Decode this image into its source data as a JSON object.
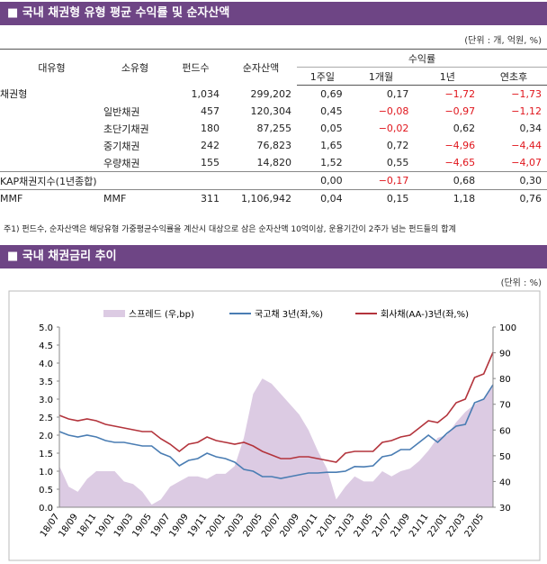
{
  "header": {
    "title": "■  국내 채권형 유형 평균 수익률 및 순자산액",
    "unit": "(단위 : 개, 억원, %)"
  },
  "table": {
    "columns": [
      "대유형",
      "소유형",
      "펀드수",
      "순자산액"
    ],
    "group": "수익률",
    "subcolumns": [
      "1주일",
      "1개월",
      "1년",
      "연초후"
    ],
    "rows": [
      [
        "채권형",
        null,
        "1,034",
        "299,202",
        "0,69",
        "0,17",
        "−1,72",
        "−1,73"
      ],
      [
        null,
        "일반채권",
        "457",
        "120,304",
        "0,45",
        "−0,08",
        "−0,97",
        "−1,12"
      ],
      [
        null,
        "초단기채권",
        "180",
        "87,255",
        "0,05",
        "−0,02",
        "0,62",
        "0,34"
      ],
      [
        null,
        "중기채권",
        "242",
        "76,823",
        "1,65",
        "0,72",
        "−4,96",
        "−4,44"
      ],
      [
        null,
        "우량채권",
        "155",
        "14,820",
        "1,52",
        "0,55",
        "−4,65",
        "−4,07"
      ],
      [
        "KAP채권지수(1년종합)",
        null,
        null,
        null,
        "0,00",
        "−0,17",
        "0,68",
        "0,30"
      ],
      [
        "MMF",
        "MMF",
        "311",
        "1,106,942",
        "0,04",
        "0,15",
        "1,18",
        "0,76"
      ]
    ]
  },
  "footnote": "주1) 펀드수, 순자산액은 해당유형 가중평균수익률을 계산시 대상으로 삼은 순자산액 10억이상, 운용기간이 2주가 넘는 펀드들의 합계",
  "section2": {
    "title": "■  국내 채권금리 추이",
    "unit": "(단위 : %)"
  },
  "chart_data": {
    "type": "line",
    "categories": [
      "18/07",
      null,
      "18/09",
      null,
      "18/11",
      null,
      "19/01",
      null,
      "19/03",
      null,
      "19/05",
      null,
      "19/07",
      null,
      "19/09",
      null,
      "19/11",
      null,
      "20/01",
      null,
      "20/03",
      null,
      "20/05",
      null,
      "20/07",
      null,
      "20/09",
      null,
      "20/11",
      null,
      "21/01",
      null,
      "21/03",
      null,
      "21/05",
      null,
      "21/07",
      null,
      "21/09",
      null,
      "21/11",
      null,
      "22/01",
      null,
      "22/03",
      null,
      "22/05",
      null
    ],
    "series": [
      {
        "name": "스프레드 (우,bp)",
        "color": "#dccbe3",
        "axis": "y2",
        "style": "area",
        "values": [
          46,
          38,
          36,
          41,
          44,
          44,
          44,
          40,
          39,
          36,
          31,
          33,
          38,
          40,
          42,
          42,
          41,
          43,
          43,
          46,
          57,
          74,
          80,
          78,
          74,
          70,
          66,
          60,
          52,
          45,
          33,
          38,
          42,
          40,
          40,
          44,
          42,
          44,
          45,
          48,
          52,
          57,
          58,
          63,
          67,
          70,
          72,
          78
        ]
      },
      {
        "name": "국고채 3년(좌,%)",
        "color": "#4a7db3",
        "values": [
          2.1,
          2.0,
          1.95,
          2.0,
          1.95,
          1.85,
          1.8,
          1.8,
          1.75,
          1.7,
          1.7,
          1.5,
          1.4,
          1.15,
          1.3,
          1.35,
          1.5,
          1.4,
          1.35,
          1.25,
          1.05,
          1.0,
          0.85,
          0.85,
          0.8,
          0.85,
          0.9,
          0.95,
          0.95,
          0.97,
          0.97,
          1.0,
          1.13,
          1.12,
          1.15,
          1.4,
          1.45,
          1.6,
          1.6,
          1.8,
          2.0,
          1.8,
          2.05,
          2.25,
          2.3,
          2.9,
          3.0,
          3.4
        ]
      },
      {
        "name": "회사채(AA-)3년(좌,%)",
        "color": "#b3343c",
        "values": [
          2.55,
          2.45,
          2.4,
          2.45,
          2.4,
          2.3,
          2.25,
          2.2,
          2.15,
          2.1,
          2.1,
          1.9,
          1.75,
          1.55,
          1.75,
          1.8,
          1.95,
          1.85,
          1.8,
          1.75,
          1.8,
          1.7,
          1.55,
          1.45,
          1.35,
          1.35,
          1.4,
          1.4,
          1.35,
          1.3,
          1.25,
          1.5,
          1.55,
          1.55,
          1.55,
          1.8,
          1.85,
          1.95,
          2.0,
          2.2,
          2.4,
          2.35,
          2.55,
          2.9,
          3.0,
          3.6,
          3.7,
          4.3
        ]
      }
    ],
    "ylim": [
      0,
      5
    ],
    "yticks": [
      {
        "value": 0,
        "label": "0.0"
      },
      0.5,
      {
        "value": 1,
        "label": "1.0"
      },
      1.5,
      {
        "value": 2,
        "label": "2.0"
      },
      2.5,
      {
        "value": 3,
        "label": "3.0"
      },
      3.5,
      {
        "value": 4,
        "label": "4.0"
      },
      4.5,
      {
        "value": 5,
        "label": "5.0"
      }
    ],
    "y2lim": [
      30,
      100
    ],
    "y2ticks": [
      30,
      40,
      50,
      60,
      70,
      80,
      90,
      100
    ]
  }
}
